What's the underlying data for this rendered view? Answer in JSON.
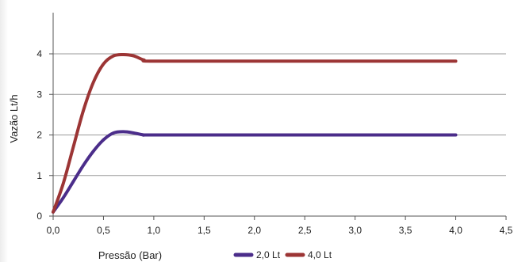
{
  "chart_data": {
    "type": "line",
    "title": "",
    "xlabel": "Pressão (Bar)",
    "ylabel": "Vazão Lt/h",
    "xlim": [
      0,
      4.5
    ],
    "ylim": [
      0,
      4
    ],
    "x_ticks": [
      "0,0",
      "0,5",
      "1,0",
      "1,5",
      "2,0",
      "2,5",
      "3,0",
      "3,5",
      "4,0",
      "4,5"
    ],
    "y_ticks": [
      "0",
      "1",
      "2",
      "3",
      "4"
    ],
    "grid": "horizontal",
    "legend_position": "bottom",
    "series": [
      {
        "name": "2,0 Lt",
        "color": "#4b2d8a",
        "points": [
          [
            0,
            0.1
          ],
          [
            0.1,
            0.45
          ],
          [
            0.2,
            0.85
          ],
          [
            0.3,
            1.25
          ],
          [
            0.4,
            1.6
          ],
          [
            0.5,
            1.88
          ],
          [
            0.6,
            2.05
          ],
          [
            0.7,
            2.08
          ],
          [
            0.8,
            2.05
          ],
          [
            0.9,
            2.0
          ],
          [
            1.0,
            2.0
          ],
          [
            2.0,
            2.0
          ],
          [
            3.0,
            2.0
          ],
          [
            4.0,
            2.0
          ]
        ]
      },
      {
        "name": "4,0 Lt",
        "color": "#9c3535",
        "points": [
          [
            0,
            0.1
          ],
          [
            0.1,
            0.8
          ],
          [
            0.2,
            1.7
          ],
          [
            0.3,
            2.6
          ],
          [
            0.4,
            3.3
          ],
          [
            0.5,
            3.75
          ],
          [
            0.6,
            3.95
          ],
          [
            0.7,
            3.98
          ],
          [
            0.8,
            3.95
          ],
          [
            0.9,
            3.85
          ],
          [
            1.0,
            3.82
          ],
          [
            2.0,
            3.82
          ],
          [
            3.0,
            3.82
          ],
          [
            4.0,
            3.82
          ]
        ]
      }
    ]
  }
}
